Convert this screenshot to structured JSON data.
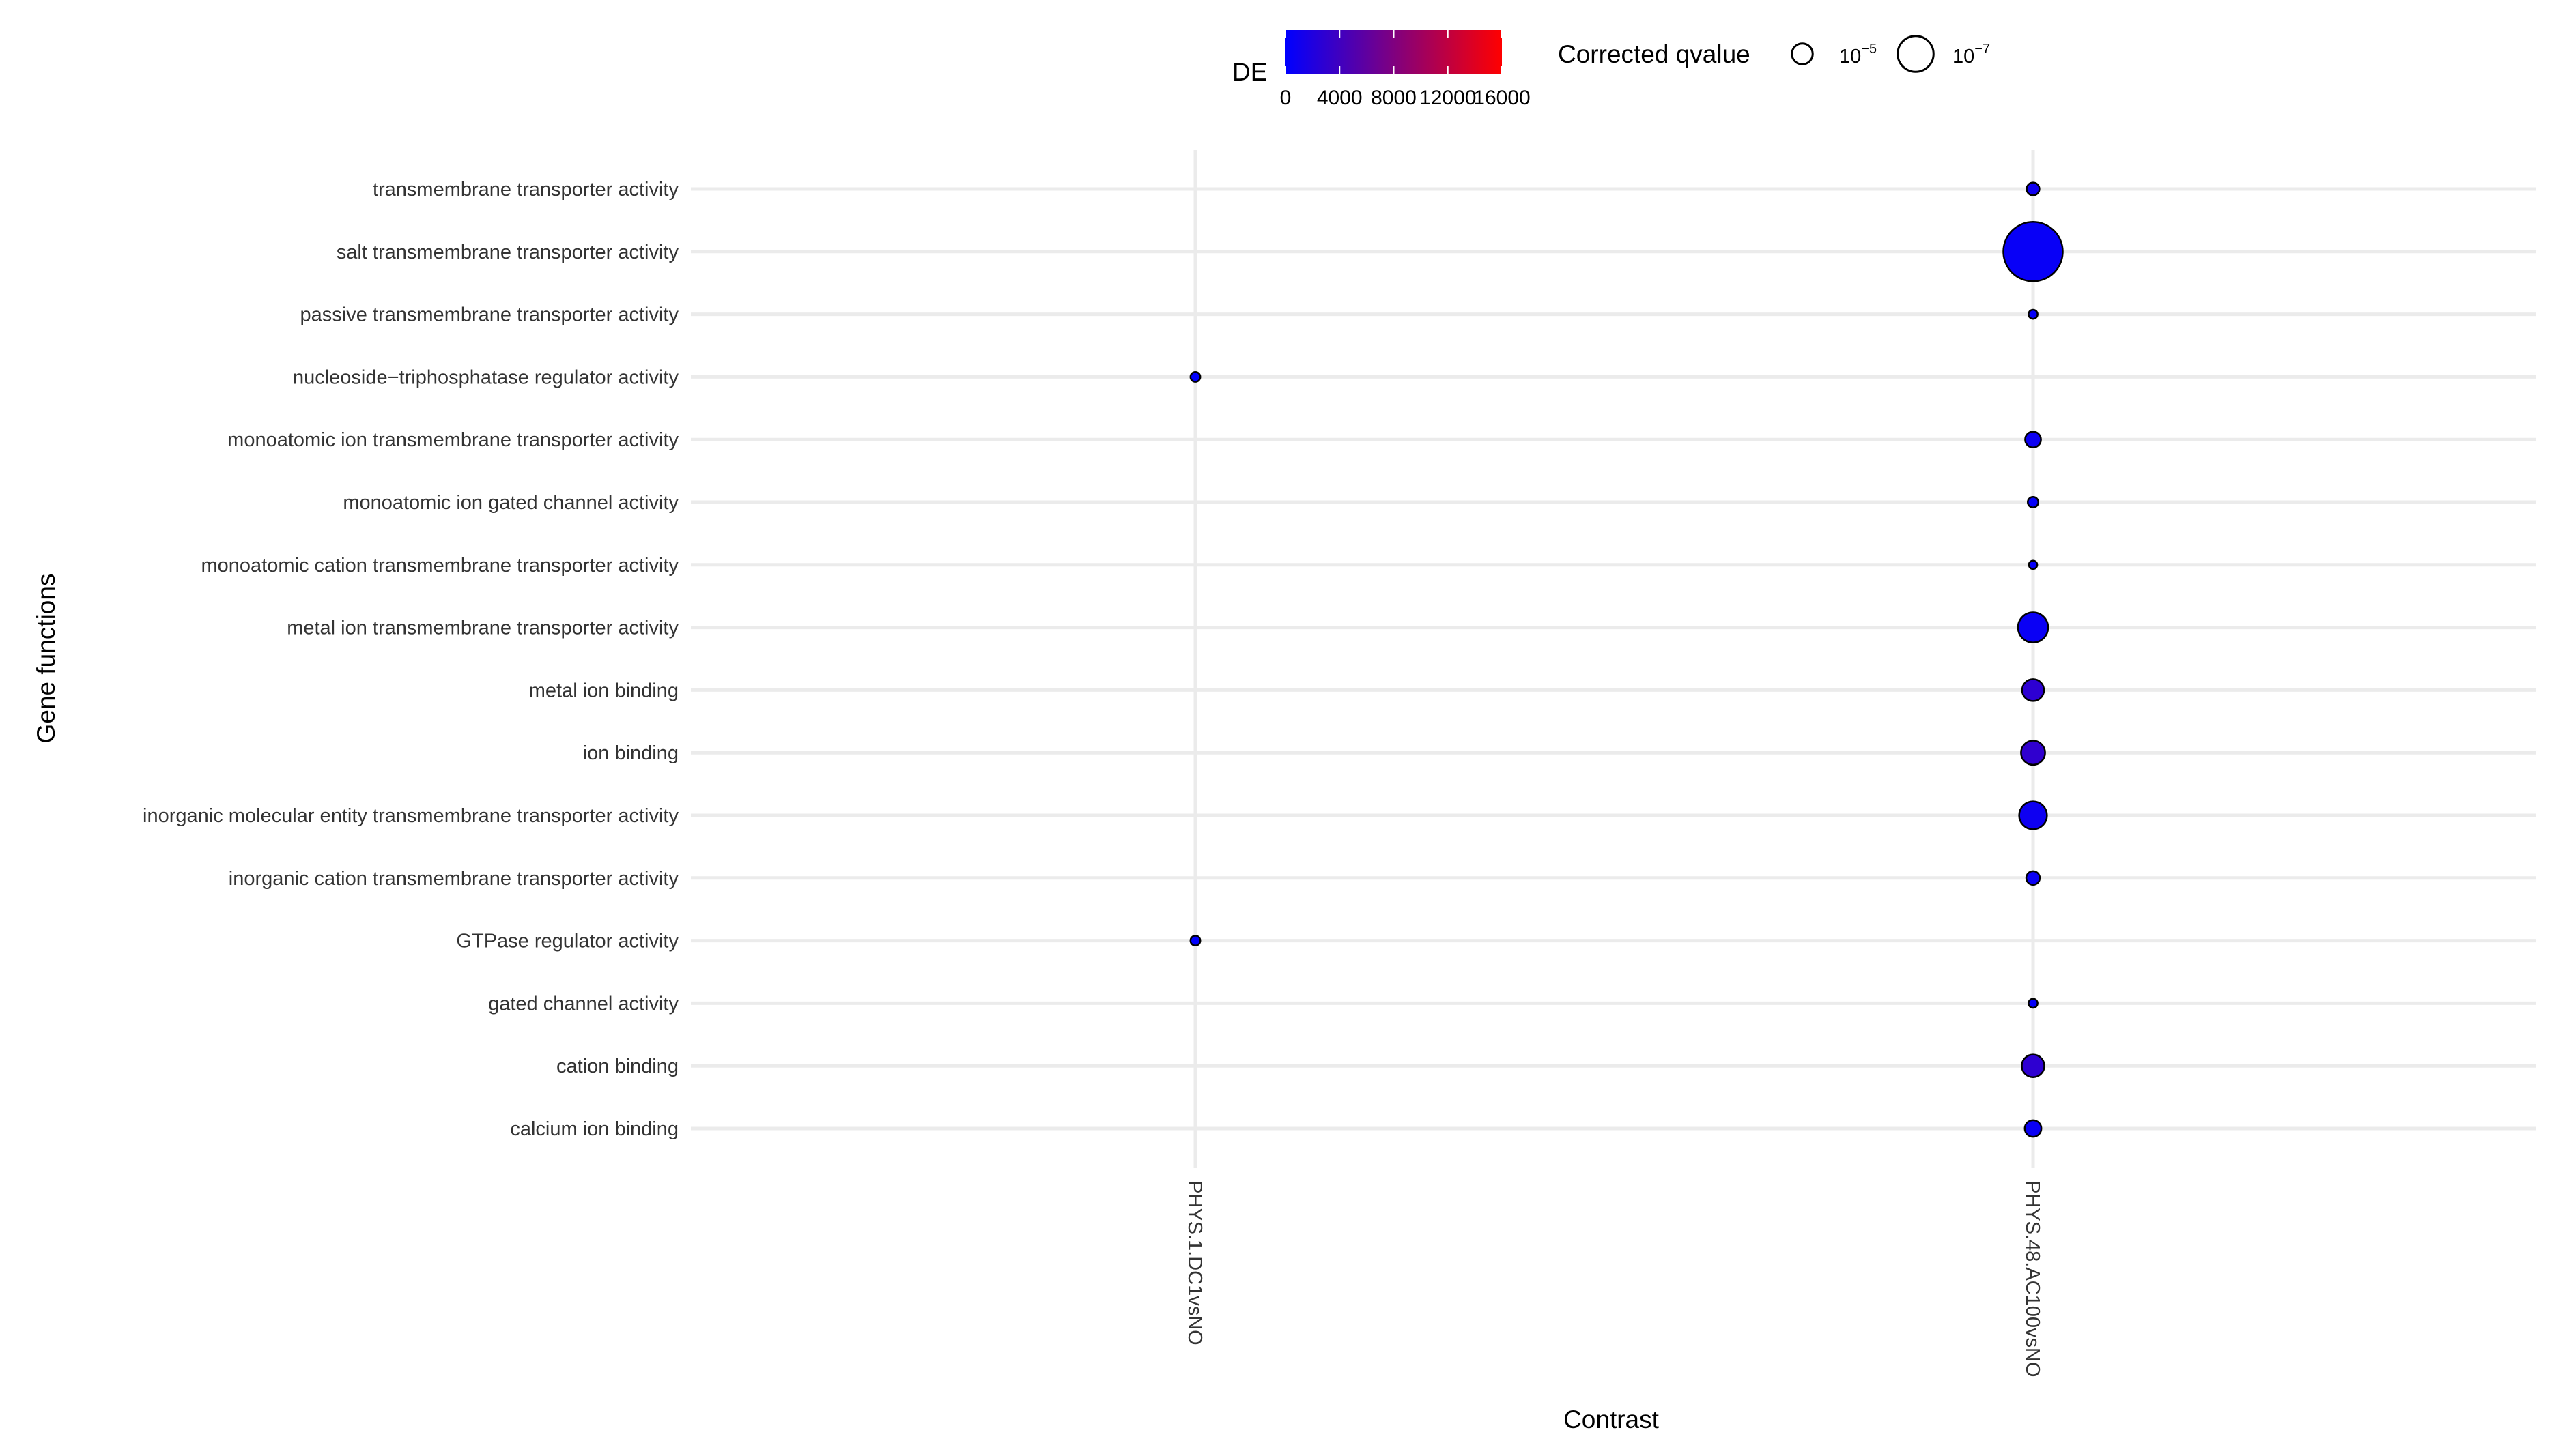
{
  "chart_data": {
    "type": "scatter",
    "xlabel": "Contrast",
    "ylabel": "Gene functions",
    "categories_x": [
      "PHYS.1.DC1vsNO",
      "PHYS.48.AC100vsNO"
    ],
    "categories_y": [
      "transmembrane transporter activity",
      "salt transmembrane transporter activity",
      "passive transmembrane transporter activity",
      "nucleoside−triphosphatase regulator activity",
      "monoatomic ion transmembrane transporter activity",
      "monoatomic ion gated channel activity",
      "monoatomic cation transmembrane transporter activity",
      "metal ion transmembrane transporter activity",
      "metal ion binding",
      "ion binding",
      "inorganic molecular entity transmembrane transporter activity",
      "inorganic cation transmembrane transporter activity",
      "GTPase regulator activity",
      "gated channel activity",
      "cation binding",
      "calcium ion binding"
    ],
    "points": [
      {
        "x": "PHYS.48.AC100vsNO",
        "y": "transmembrane transporter activity",
        "DE": 1000,
        "neglog10_qvalue": 4.3
      },
      {
        "x": "PHYS.48.AC100vsNO",
        "y": "salt transmembrane transporter activity",
        "DE": 500,
        "neglog10_qvalue": 10.5
      },
      {
        "x": "PHYS.48.AC100vsNO",
        "y": "passive transmembrane transporter activity",
        "DE": 300,
        "neglog10_qvalue": 3.8
      },
      {
        "x": "PHYS.1.DC1vsNO",
        "y": "nucleoside−triphosphatase regulator activity",
        "DE": 50,
        "neglog10_qvalue": 3.9
      },
      {
        "x": "PHYS.48.AC100vsNO",
        "y": "monoatomic ion transmembrane transporter activity",
        "DE": 800,
        "neglog10_qvalue": 4.7
      },
      {
        "x": "PHYS.48.AC100vsNO",
        "y": "monoatomic ion gated channel activity",
        "DE": 300,
        "neglog10_qvalue": 4.0
      },
      {
        "x": "PHYS.48.AC100vsNO",
        "y": "monoatomic cation transmembrane transporter activity",
        "DE": 400,
        "neglog10_qvalue": 3.7
      },
      {
        "x": "PHYS.48.AC100vsNO",
        "y": "metal ion transmembrane transporter activity",
        "DE": 600,
        "neglog10_qvalue": 6.6
      },
      {
        "x": "PHYS.48.AC100vsNO",
        "y": "metal ion binding",
        "DE": 2800,
        "neglog10_qvalue": 5.5
      },
      {
        "x": "PHYS.48.AC100vsNO",
        "y": "ion binding",
        "DE": 3000,
        "neglog10_qvalue": 5.8
      },
      {
        "x": "PHYS.48.AC100vsNO",
        "y": "inorganic molecular entity transmembrane transporter activity",
        "DE": 900,
        "neglog10_qvalue": 6.3
      },
      {
        "x": "PHYS.48.AC100vsNO",
        "y": "inorganic cation transmembrane transporter activity",
        "DE": 700,
        "neglog10_qvalue": 4.4
      },
      {
        "x": "PHYS.1.DC1vsNO",
        "y": "GTPase regulator activity",
        "DE": 50,
        "neglog10_qvalue": 3.9
      },
      {
        "x": "PHYS.48.AC100vsNO",
        "y": "gated channel activity",
        "DE": 300,
        "neglog10_qvalue": 3.8
      },
      {
        "x": "PHYS.48.AC100vsNO",
        "y": "cation binding",
        "DE": 2900,
        "neglog10_qvalue": 5.6
      },
      {
        "x": "PHYS.48.AC100vsNO",
        "y": "calcium ion binding",
        "DE": 600,
        "neglog10_qvalue": 4.8
      }
    ],
    "color_legend": {
      "title": "DE",
      "ticks": [
        "0",
        "4000",
        "8000",
        "12000",
        "16000"
      ],
      "tick_values": [
        0,
        4000,
        8000,
        12000,
        16000
      ],
      "range": [
        0,
        16000
      ],
      "low_color": "#0000ff",
      "high_color": "#ff0000"
    },
    "size_legend": {
      "title": "Corrected qvalue",
      "entries": [
        {
          "base": "10",
          "exponent": "−5",
          "neglog10": 5
        },
        {
          "base": "10",
          "exponent": "−7",
          "neglog10": 7
        }
      ]
    },
    "grid": true,
    "legend_position": "top"
  }
}
